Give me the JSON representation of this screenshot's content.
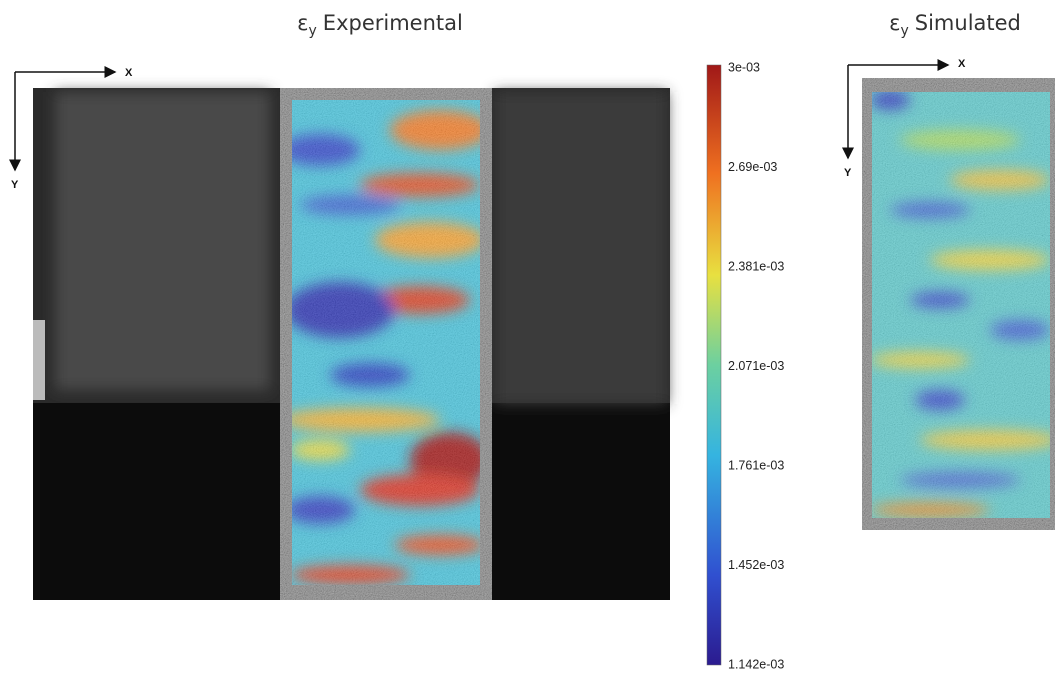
{
  "left_panel": {
    "title": {
      "symbol": "ε",
      "subscript": "y",
      "text": "Experimental"
    },
    "x_axis_label": "X",
    "y_axis_label": "Y"
  },
  "right_panel": {
    "title": {
      "symbol": "ε",
      "subscript": "y",
      "text": "Simulated"
    },
    "x_axis_label": "X",
    "y_axis_label": "Y"
  },
  "colorbar": {
    "labels": [
      "3e-03",
      "2.69e-03",
      "2.381e-03",
      "2.071e-03",
      "1.761e-03",
      "1.452e-03",
      "1.142e-03"
    ]
  }
}
